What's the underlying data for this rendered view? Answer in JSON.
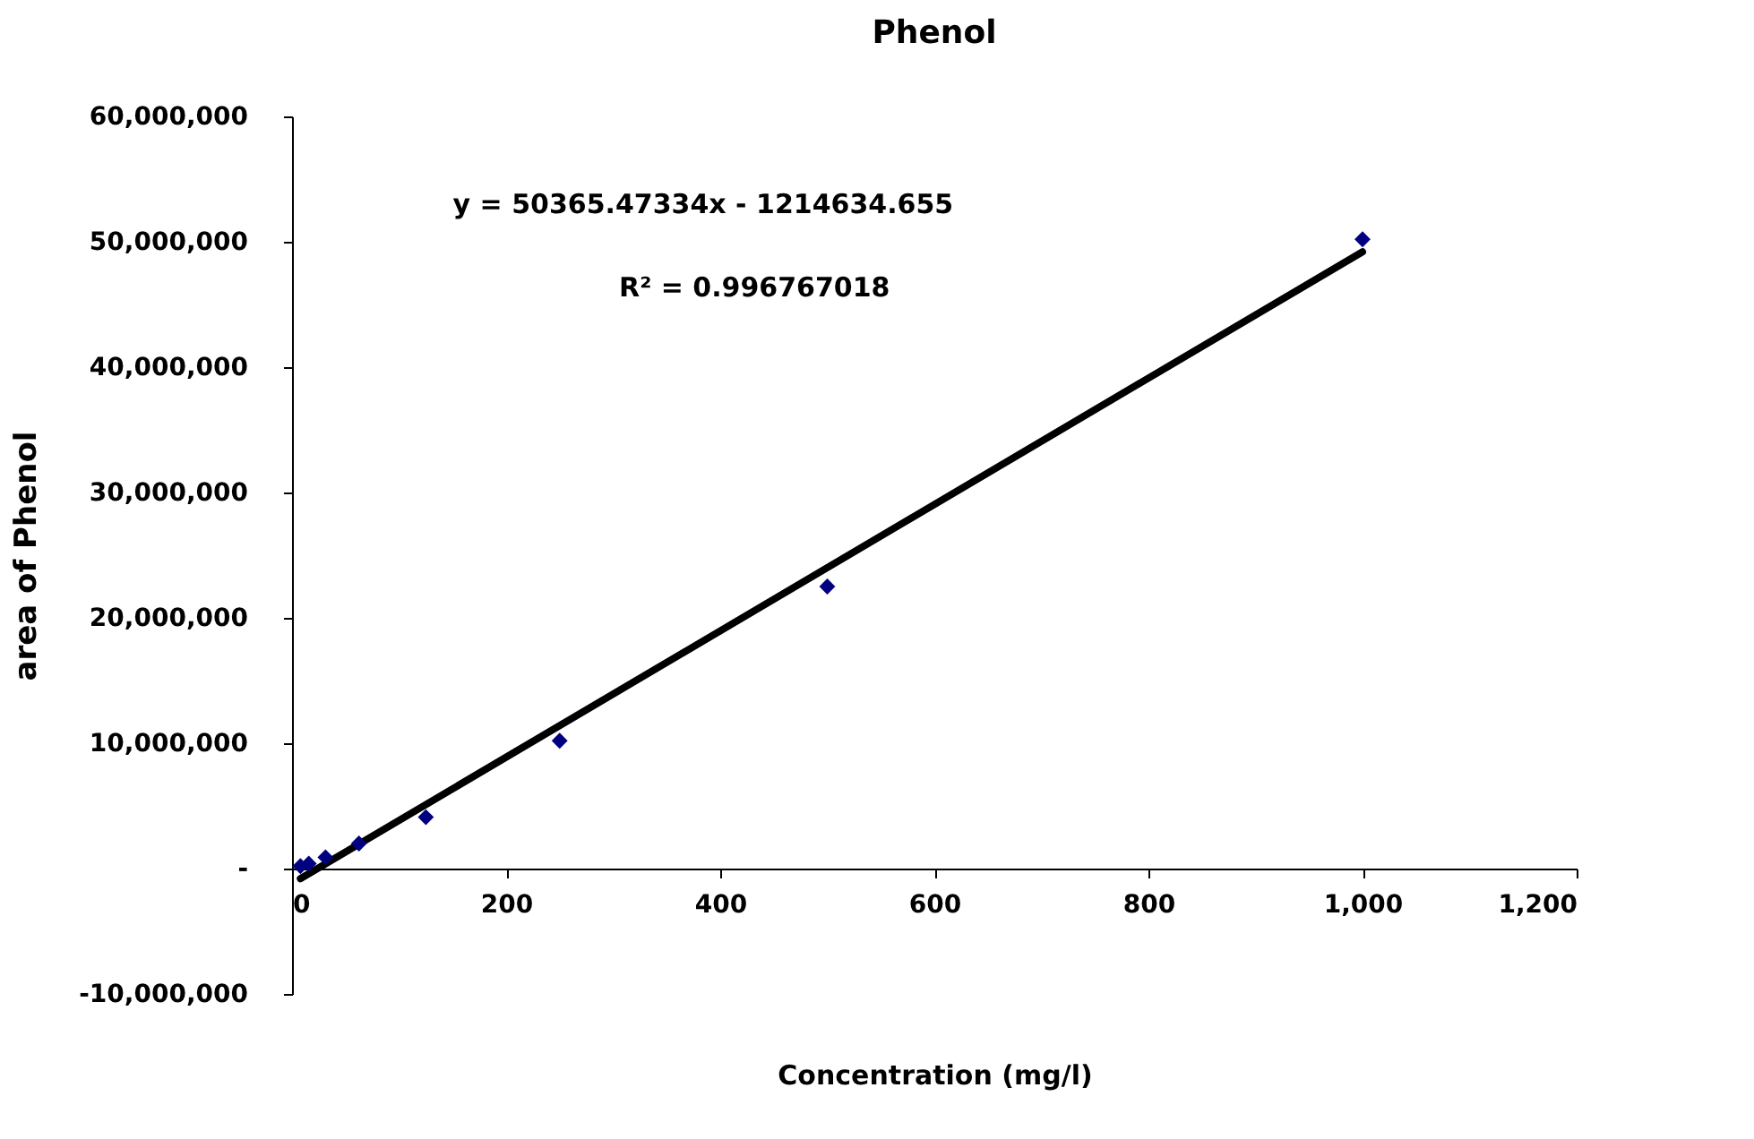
{
  "chart_data": {
    "type": "scatter",
    "title": "Phenol",
    "xlabel": "Concentration (mg/l)",
    "ylabel": "area of Phenol",
    "series": [
      {
        "color": "#000080",
        "marker": "diamond",
        "x": [
          7.8125,
          15.625,
          31.25,
          62.5,
          125,
          250,
          500,
          1000
        ],
        "values": [
          200000,
          400000,
          900000,
          2000000,
          4100000,
          10200000,
          22500000,
          50200000
        ]
      },
      {
        "type": "line",
        "color": "#000000",
        "marker": "none",
        "x": [
          7.8125,
          1000
        ],
        "values": [
          -800000,
          49200000
        ]
      }
    ],
    "xlim": [
      0,
      1200
    ],
    "xticks": [
      0,
      200,
      400,
      600,
      800,
      {
        "value": 1000,
        "label": "1,000"
      },
      {
        "value": 1200,
        "label": "1,200"
      }
    ],
    "ylim": [
      -10000000,
      60000000
    ],
    "yticks": [
      {
        "value": -10000000,
        "label": "-10,000,000"
      },
      {
        "value": 0,
        "label": "-"
      },
      {
        "value": 10000000,
        "label": "10,000,000"
      },
      {
        "value": 20000000,
        "label": "20,000,000"
      },
      {
        "value": 30000000,
        "label": "30,000,000"
      },
      {
        "value": 40000000,
        "label": "40,000,000"
      },
      {
        "value": 50000000,
        "label": "50,000,000"
      },
      {
        "value": 60000000,
        "label": "60,000,000"
      }
    ],
    "annotations": [
      "y = 50365.47334x - 1214634.655",
      "R² = 0.996767018"
    ]
  }
}
